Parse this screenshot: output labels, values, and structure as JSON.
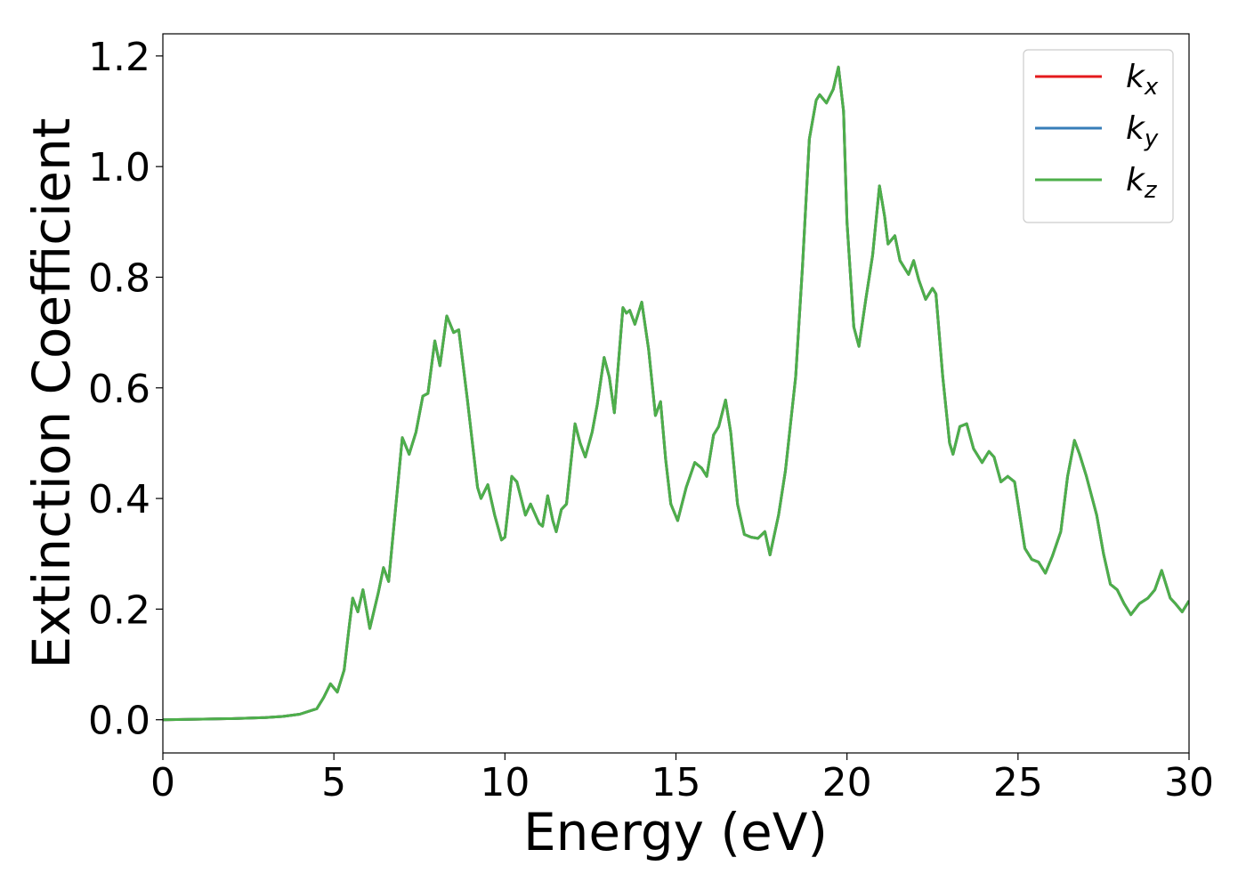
{
  "chart_data": {
    "type": "line",
    "xlabel": "Energy (eV)",
    "ylabel": "Extinction Coefficient",
    "xlim": [
      0,
      30
    ],
    "ylim": [
      -0.06,
      1.24
    ],
    "xticks": [
      0,
      5,
      10,
      15,
      20,
      25,
      30
    ],
    "yticks": [
      {
        "value": 0,
        "label": "0.0"
      },
      0.2,
      0.4,
      0.6,
      0.8,
      {
        "value": 1,
        "label": "1.0"
      },
      1.2
    ],
    "legend": "upper right",
    "x": [
      0,
      1,
      2,
      3,
      3.5,
      4,
      4.5,
      4.7,
      4.9,
      5.1,
      5.3,
      5.45,
      5.55,
      5.7,
      5.85,
      6.05,
      6.3,
      6.45,
      6.6,
      6.8,
      7.0,
      7.2,
      7.4,
      7.6,
      7.75,
      7.95,
      8.1,
      8.3,
      8.5,
      8.65,
      8.9,
      9.2,
      9.3,
      9.5,
      9.7,
      9.9,
      10.0,
      10.2,
      10.35,
      10.6,
      10.75,
      11.0,
      11.1,
      11.25,
      11.4,
      11.5,
      11.65,
      11.8,
      12.05,
      12.2,
      12.35,
      12.55,
      12.7,
      12.9,
      13.05,
      13.2,
      13.45,
      13.55,
      13.65,
      13.8,
      14.0,
      14.2,
      14.4,
      14.55,
      14.7,
      14.85,
      15.05,
      15.3,
      15.55,
      15.75,
      15.9,
      16.1,
      16.25,
      16.45,
      16.6,
      16.8,
      17.0,
      17.2,
      17.4,
      17.6,
      17.75,
      18.0,
      18.2,
      18.5,
      18.7,
      18.9,
      19.1,
      19.2,
      19.4,
      19.6,
      19.75,
      19.9,
      20.0,
      20.2,
      20.35,
      20.55,
      20.75,
      20.95,
      21.1,
      21.2,
      21.4,
      21.55,
      21.8,
      21.95,
      22.1,
      22.3,
      22.5,
      22.6,
      22.8,
      23.0,
      23.1,
      23.3,
      23.5,
      23.7,
      23.95,
      24.15,
      24.3,
      24.5,
      24.7,
      24.9,
      25.05,
      25.2,
      25.4,
      25.6,
      25.8,
      26.0,
      26.25,
      26.45,
      26.65,
      26.8,
      27.0,
      27.3,
      27.5,
      27.7,
      27.9,
      28.1,
      28.3,
      28.55,
      28.8,
      29.0,
      29.2,
      29.45,
      29.6,
      29.8,
      30.0
    ],
    "series": [
      {
        "name": "kx",
        "color": "#e41a1c",
        "values": [
          0,
          0.001,
          0.002,
          0.004,
          0.006,
          0.01,
          0.02,
          0.04,
          0.065,
          0.05,
          0.09,
          0.17,
          0.22,
          0.195,
          0.235,
          0.165,
          0.23,
          0.275,
          0.25,
          0.38,
          0.51,
          0.48,
          0.52,
          0.585,
          0.59,
          0.685,
          0.64,
          0.73,
          0.7,
          0.705,
          0.58,
          0.42,
          0.4,
          0.425,
          0.37,
          0.325,
          0.33,
          0.44,
          0.43,
          0.37,
          0.39,
          0.355,
          0.35,
          0.405,
          0.36,
          0.34,
          0.38,
          0.39,
          0.535,
          0.5,
          0.475,
          0.52,
          0.57,
          0.655,
          0.62,
          0.555,
          0.745,
          0.735,
          0.74,
          0.715,
          0.755,
          0.67,
          0.55,
          0.575,
          0.47,
          0.39,
          0.36,
          0.42,
          0.465,
          0.455,
          0.44,
          0.515,
          0.53,
          0.578,
          0.52,
          0.39,
          0.335,
          0.33,
          0.328,
          0.34,
          0.298,
          0.37,
          0.45,
          0.62,
          0.82,
          1.05,
          1.12,
          1.13,
          1.115,
          1.14,
          1.18,
          1.1,
          0.9,
          0.71,
          0.675,
          0.76,
          0.84,
          0.965,
          0.91,
          0.86,
          0.875,
          0.83,
          0.805,
          0.83,
          0.795,
          0.76,
          0.78,
          0.77,
          0.62,
          0.5,
          0.48,
          0.53,
          0.535,
          0.49,
          0.465,
          0.485,
          0.475,
          0.43,
          0.44,
          0.43,
          0.37,
          0.31,
          0.29,
          0.285,
          0.265,
          0.295,
          0.34,
          0.44,
          0.505,
          0.48,
          0.44,
          0.37,
          0.3,
          0.245,
          0.235,
          0.21,
          0.19,
          0.21,
          0.22,
          0.235,
          0.27,
          0.22,
          0.21,
          0.195,
          0.215
        ]
      },
      {
        "name": "ky",
        "color": "#377eb8",
        "values": [
          0,
          0.001,
          0.002,
          0.004,
          0.006,
          0.01,
          0.02,
          0.04,
          0.065,
          0.05,
          0.09,
          0.17,
          0.22,
          0.195,
          0.235,
          0.165,
          0.23,
          0.275,
          0.25,
          0.38,
          0.51,
          0.48,
          0.52,
          0.585,
          0.59,
          0.685,
          0.64,
          0.73,
          0.7,
          0.705,
          0.58,
          0.42,
          0.4,
          0.425,
          0.37,
          0.325,
          0.33,
          0.44,
          0.43,
          0.37,
          0.39,
          0.355,
          0.35,
          0.405,
          0.36,
          0.34,
          0.38,
          0.39,
          0.535,
          0.5,
          0.475,
          0.52,
          0.57,
          0.655,
          0.62,
          0.555,
          0.745,
          0.735,
          0.74,
          0.715,
          0.755,
          0.67,
          0.55,
          0.575,
          0.47,
          0.39,
          0.36,
          0.42,
          0.465,
          0.455,
          0.44,
          0.515,
          0.53,
          0.578,
          0.52,
          0.39,
          0.335,
          0.33,
          0.328,
          0.34,
          0.298,
          0.37,
          0.45,
          0.62,
          0.82,
          1.05,
          1.12,
          1.13,
          1.115,
          1.14,
          1.18,
          1.1,
          0.9,
          0.71,
          0.675,
          0.76,
          0.84,
          0.965,
          0.91,
          0.86,
          0.875,
          0.83,
          0.805,
          0.83,
          0.795,
          0.76,
          0.78,
          0.77,
          0.62,
          0.5,
          0.48,
          0.53,
          0.535,
          0.49,
          0.465,
          0.485,
          0.475,
          0.43,
          0.44,
          0.43,
          0.37,
          0.31,
          0.29,
          0.285,
          0.265,
          0.295,
          0.34,
          0.44,
          0.505,
          0.48,
          0.44,
          0.37,
          0.3,
          0.245,
          0.235,
          0.21,
          0.19,
          0.21,
          0.22,
          0.235,
          0.27,
          0.22,
          0.21,
          0.195,
          0.215
        ]
      },
      {
        "name": "kz",
        "color": "#4daf4a",
        "values": [
          0,
          0.001,
          0.002,
          0.004,
          0.006,
          0.01,
          0.02,
          0.04,
          0.065,
          0.05,
          0.09,
          0.17,
          0.22,
          0.195,
          0.235,
          0.165,
          0.23,
          0.275,
          0.25,
          0.38,
          0.51,
          0.48,
          0.52,
          0.585,
          0.59,
          0.685,
          0.64,
          0.73,
          0.7,
          0.705,
          0.58,
          0.42,
          0.4,
          0.425,
          0.37,
          0.325,
          0.33,
          0.44,
          0.43,
          0.37,
          0.39,
          0.355,
          0.35,
          0.405,
          0.36,
          0.34,
          0.38,
          0.39,
          0.535,
          0.5,
          0.475,
          0.52,
          0.57,
          0.655,
          0.62,
          0.555,
          0.745,
          0.735,
          0.74,
          0.715,
          0.755,
          0.67,
          0.55,
          0.575,
          0.47,
          0.39,
          0.36,
          0.42,
          0.465,
          0.455,
          0.44,
          0.515,
          0.53,
          0.578,
          0.52,
          0.39,
          0.335,
          0.33,
          0.328,
          0.34,
          0.298,
          0.37,
          0.45,
          0.62,
          0.82,
          1.05,
          1.12,
          1.13,
          1.115,
          1.14,
          1.18,
          1.1,
          0.9,
          0.71,
          0.675,
          0.76,
          0.84,
          0.965,
          0.91,
          0.86,
          0.875,
          0.83,
          0.805,
          0.83,
          0.795,
          0.76,
          0.78,
          0.77,
          0.62,
          0.5,
          0.48,
          0.53,
          0.535,
          0.49,
          0.465,
          0.485,
          0.475,
          0.43,
          0.44,
          0.43,
          0.37,
          0.31,
          0.29,
          0.285,
          0.265,
          0.295,
          0.34,
          0.44,
          0.505,
          0.48,
          0.44,
          0.37,
          0.3,
          0.245,
          0.235,
          0.21,
          0.19,
          0.21,
          0.22,
          0.235,
          0.27,
          0.22,
          0.21,
          0.195,
          0.215
        ]
      }
    ]
  }
}
